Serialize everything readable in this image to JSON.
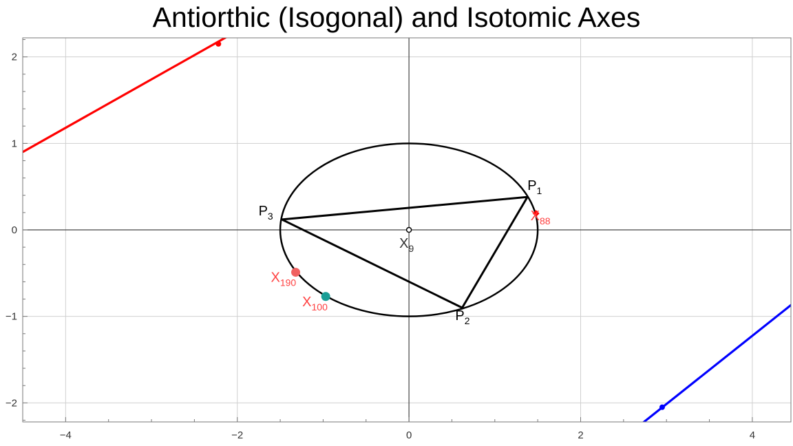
{
  "chart_data": {
    "type": "scatter",
    "title": "Antiorthic (Isogonal) and Isotomic Axes",
    "xlabel": "",
    "ylabel": "",
    "xlim": [
      -4.5,
      4.45
    ],
    "ylim": [
      -2.22,
      2.22
    ],
    "x_ticks": [
      -4,
      -2,
      0,
      2,
      4
    ],
    "y_ticks": [
      -2,
      -1,
      0,
      1,
      2
    ],
    "x_tick_labels": [
      "−4",
      "−2",
      "0",
      "2",
      "4"
    ],
    "y_tick_labels": [
      "−2",
      "−1",
      "0",
      "1",
      "2"
    ],
    "grid": true,
    "ellipse": {
      "center": [
        0,
        0
      ],
      "rx": 1.5,
      "ry": 1.0,
      "color": "#000000"
    },
    "triangle": [
      {
        "name": "P",
        "sub": "1",
        "x": 1.38,
        "y": 0.38
      },
      {
        "name": "P",
        "sub": "2",
        "x": 0.62,
        "y": -0.9
      },
      {
        "name": "P",
        "sub": "3",
        "x": -1.48,
        "y": 0.12
      }
    ],
    "lines": [
      {
        "color": "#ff0000",
        "from": [
          -4.5,
          0.9
        ],
        "to": [
          -2.0,
          2.3
        ],
        "marker": [
          -2.22,
          2.15
        ]
      },
      {
        "color": "#0000ff",
        "from": [
          2.7,
          -2.25
        ],
        "to": [
          4.5,
          -0.83
        ],
        "marker": [
          2.95,
          -2.05
        ]
      }
    ],
    "points": [
      {
        "name": "X",
        "sub": "9",
        "x": 0.0,
        "y": 0.0,
        "color": "#000000",
        "label_color": "#333333",
        "marker": "circle-open"
      },
      {
        "name": "X",
        "sub": "88",
        "x": 1.48,
        "y": 0.19,
        "color": "#ff0000",
        "label_color": "#ff4040",
        "marker": "diamond"
      },
      {
        "name": "X",
        "sub": "190",
        "x": -1.32,
        "y": -0.49,
        "color": "#f06060",
        "label_color": "#ff4040",
        "marker": "dot"
      },
      {
        "name": "X",
        "sub": "100",
        "x": -0.97,
        "y": -0.77,
        "color": "#1a9e96",
        "label_color": "#ff4040",
        "marker": "dot"
      }
    ]
  }
}
